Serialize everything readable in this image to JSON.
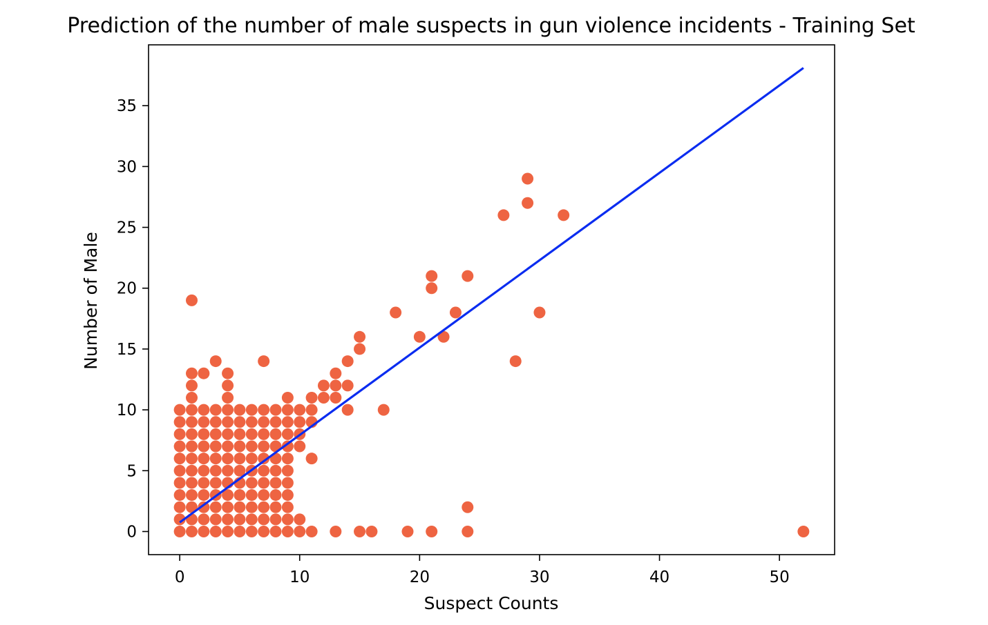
{
  "chart_data": {
    "type": "scatter",
    "title": "Prediction of the number of male suspects in gun violence incidents - Training Set",
    "xlabel": "Suspect Counts",
    "ylabel": "Number of Male",
    "xlim": [
      -2.6,
      54.6
    ],
    "ylim": [
      -1.9,
      40.0
    ],
    "xticks": [
      "0",
      "10",
      "20",
      "30",
      "40",
      "50"
    ],
    "yticks": [
      "0",
      "5",
      "10",
      "15",
      "20",
      "25",
      "30",
      "35"
    ],
    "grid": false,
    "colors": {
      "points": "#ee6442",
      "line": "#0a2cf0",
      "axes": "#000000"
    },
    "series": [
      {
        "type": "scatter",
        "x": [
          0,
          1,
          2,
          3,
          4,
          5,
          6,
          7,
          8,
          9,
          10,
          11,
          13,
          15,
          16,
          19,
          21,
          24,
          52,
          0,
          1,
          2,
          3,
          4,
          5,
          6,
          7,
          8,
          9,
          10,
          0,
          1,
          2,
          3,
          4,
          5,
          6,
          7,
          8,
          9,
          24,
          0,
          1,
          2,
          3,
          4,
          5,
          6,
          7,
          8,
          9,
          0,
          1,
          2,
          3,
          4,
          5,
          6,
          7,
          8,
          9,
          0,
          1,
          2,
          3,
          4,
          5,
          6,
          7,
          8,
          9,
          0,
          1,
          2,
          3,
          4,
          5,
          6,
          7,
          8,
          9,
          11,
          0,
          1,
          2,
          3,
          4,
          5,
          6,
          7,
          8,
          9,
          10,
          0,
          1,
          2,
          3,
          4,
          5,
          6,
          7,
          8,
          9,
          10,
          0,
          1,
          2,
          3,
          4,
          5,
          6,
          7,
          8,
          9,
          10,
          11,
          0,
          1,
          2,
          3,
          4,
          5,
          6,
          7,
          8,
          9,
          10,
          11,
          14,
          17,
          1,
          4,
          9,
          11,
          12,
          13,
          1,
          4,
          12,
          13,
          14,
          1,
          2,
          4,
          13,
          3,
          7,
          14,
          28,
          15,
          15,
          20,
          22,
          18,
          30,
          23,
          21,
          24,
          21,
          1,
          27,
          32,
          29,
          29
        ],
        "y": [
          0,
          0,
          0,
          0,
          0,
          0,
          0,
          0,
          0,
          0,
          0,
          0,
          0,
          0,
          0,
          0,
          0,
          0,
          0,
          1,
          1,
          1,
          1,
          1,
          1,
          1,
          1,
          1,
          1,
          1,
          2,
          2,
          2,
          2,
          2,
          2,
          2,
          2,
          2,
          2,
          2,
          3,
          3,
          3,
          3,
          3,
          3,
          3,
          3,
          3,
          3,
          4,
          4,
          4,
          4,
          4,
          4,
          4,
          4,
          4,
          4,
          5,
          5,
          5,
          5,
          5,
          5,
          5,
          5,
          5,
          5,
          6,
          6,
          6,
          6,
          6,
          6,
          6,
          6,
          6,
          6,
          6,
          7,
          7,
          7,
          7,
          7,
          7,
          7,
          7,
          7,
          7,
          7,
          8,
          8,
          8,
          8,
          8,
          8,
          8,
          8,
          8,
          8,
          8,
          9,
          9,
          9,
          9,
          9,
          9,
          9,
          9,
          9,
          9,
          9,
          9,
          10,
          10,
          10,
          10,
          10,
          10,
          10,
          10,
          10,
          10,
          10,
          10,
          10,
          10,
          11,
          11,
          11,
          11,
          11,
          11,
          12,
          12,
          12,
          12,
          12,
          13,
          13,
          13,
          13,
          14,
          14,
          14,
          14,
          15,
          16,
          16,
          16,
          18,
          18,
          18,
          20,
          21,
          21,
          19,
          26,
          26,
          27,
          29
        ]
      },
      {
        "type": "line",
        "x": [
          0,
          52
        ],
        "y": [
          0.75,
          38.1
        ]
      }
    ]
  }
}
